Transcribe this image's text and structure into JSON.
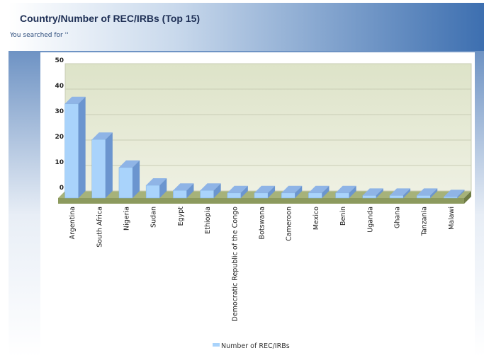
{
  "chart_data": {
    "type": "bar3d",
    "title": "Country/Number of REC/IRBs (Top 15)",
    "subtitle": "You searched for ''",
    "categories": [
      "Argentina",
      "South Africa",
      "Nigeria",
      "Sudan",
      "Egypt",
      "Ethiopia",
      "Democratic Republic of the Congo",
      "Botswana",
      "Cameroon",
      "Mexico",
      "Benin",
      "Uganda",
      "Ghana",
      "Tanzania",
      "Malawi"
    ],
    "series": [
      {
        "name": "Number of REC/IRBs",
        "color": "#a9d3fb",
        "values": [
          37,
          23,
          12,
          5,
          3,
          3,
          2,
          2,
          2,
          2,
          2,
          1,
          1,
          1,
          0.5
        ]
      }
    ],
    "ylim": [
      0,
      50
    ],
    "yticks": [
      0,
      10,
      20,
      30,
      40,
      50
    ],
    "grid": true
  }
}
